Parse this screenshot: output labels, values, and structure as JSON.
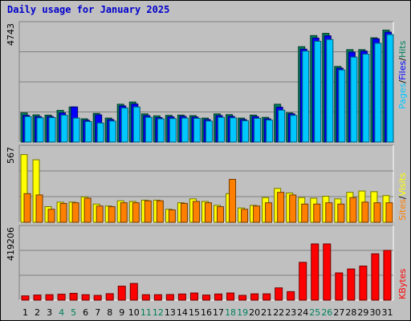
{
  "title": "Daily usage for January 2025",
  "colors": {
    "hits": "#00805c",
    "files": "#0000ff",
    "pages": "#00c8ff",
    "visits": "#ffff00",
    "sites": "#ff8000",
    "kbytes": "#ff0000",
    "weekend_label": "#00805c",
    "weekday_label": "#000000"
  },
  "chart_data": [
    {
      "type": "bar",
      "name": "hits-files-pages",
      "ylabel_parts": [
        "Pages",
        "Files",
        "Hits"
      ],
      "ymax_label": "4743",
      "ylim": [
        0,
        4743
      ],
      "categories": [
        "1",
        "2",
        "3",
        "4",
        "5",
        "6",
        "7",
        "8",
        "9",
        "10",
        "11",
        "12",
        "13",
        "14",
        "15",
        "16",
        "17",
        "18",
        "19",
        "20",
        "21",
        "22",
        "23",
        "24",
        "25",
        "26",
        "27",
        "28",
        "29",
        "30",
        "31"
      ],
      "weekend_days": [
        4,
        5,
        11,
        12,
        18,
        19,
        25,
        26
      ],
      "series": [
        {
          "name": "Hits",
          "values": [
            1180,
            1100,
            1090,
            1280,
            1420,
            940,
            1160,
            970,
            1530,
            1620,
            1140,
            1060,
            1080,
            1090,
            1070,
            970,
            1140,
            1110,
            970,
            1090,
            1000,
            1530,
            1180,
            3860,
            4310,
            4400,
            3060,
            3740,
            3740,
            4220,
            4530
          ]
        },
        {
          "name": "Files",
          "values": [
            1080,
            1030,
            1030,
            1180,
            1420,
            880,
            1100,
            910,
            1460,
            1540,
            1070,
            990,
            1020,
            1040,
            1010,
            910,
            1070,
            1040,
            910,
            1030,
            940,
            1410,
            1140,
            3760,
            4210,
            4300,
            2990,
            3640,
            3680,
            4180,
            4450
          ]
        },
        {
          "name": "Pages",
          "values": [
            1030,
            980,
            990,
            1090,
            970,
            830,
            770,
            850,
            1380,
            1420,
            1000,
            940,
            950,
            970,
            960,
            850,
            1000,
            980,
            860,
            960,
            890,
            1290,
            1080,
            3680,
            4080,
            4150,
            2920,
            3440,
            3560,
            4000,
            4350
          ]
        }
      ]
    },
    {
      "type": "bar",
      "name": "visits-sites",
      "ylabel_parts": [
        "Sites",
        "Visits"
      ],
      "ymax_label": "567",
      "ylim": [
        0,
        567
      ],
      "categories": [
        "1",
        "2",
        "3",
        "4",
        "5",
        "6",
        "7",
        "8",
        "9",
        "10",
        "11",
        "12",
        "13",
        "14",
        "15",
        "16",
        "17",
        "18",
        "19",
        "20",
        "21",
        "22",
        "23",
        "24",
        "25",
        "26",
        "27",
        "28",
        "29",
        "30",
        "31"
      ],
      "series": [
        {
          "name": "Visits",
          "values": [
            520,
            480,
            120,
            155,
            155,
            195,
            140,
            125,
            165,
            160,
            170,
            170,
            100,
            150,
            180,
            160,
            130,
            220,
            110,
            130,
            190,
            260,
            225,
            190,
            185,
            200,
            180,
            230,
            240,
            235,
            205
          ]
        },
        {
          "name": "Sites",
          "values": [
            220,
            210,
            100,
            145,
            150,
            185,
            125,
            120,
            150,
            150,
            165,
            165,
            95,
            145,
            160,
            150,
            120,
            330,
            100,
            125,
            150,
            230,
            210,
            140,
            140,
            150,
            140,
            190,
            155,
            150,
            150
          ]
        }
      ]
    },
    {
      "type": "bar",
      "name": "kbytes",
      "ylabel_parts": [
        "KBytes"
      ],
      "ymax_label": "419206",
      "ylim": [
        0,
        419206
      ],
      "categories": [
        "1",
        "2",
        "3",
        "4",
        "5",
        "6",
        "7",
        "8",
        "9",
        "10",
        "11",
        "12",
        "13",
        "14",
        "15",
        "16",
        "17",
        "18",
        "19",
        "20",
        "21",
        "22",
        "23",
        "24",
        "25",
        "26",
        "27",
        "28",
        "29",
        "30",
        "31"
      ],
      "series": [
        {
          "name": "KBytes",
          "values": [
            25000,
            30000,
            32000,
            35000,
            40000,
            32000,
            28000,
            38000,
            82000,
            98000,
            32000,
            32000,
            33000,
            36000,
            42000,
            30000,
            36000,
            42000,
            28000,
            37000,
            37000,
            72000,
            50000,
            222000,
            330000,
            330000,
            160000,
            183000,
            200000,
            272000,
            292000
          ]
        }
      ]
    }
  ]
}
